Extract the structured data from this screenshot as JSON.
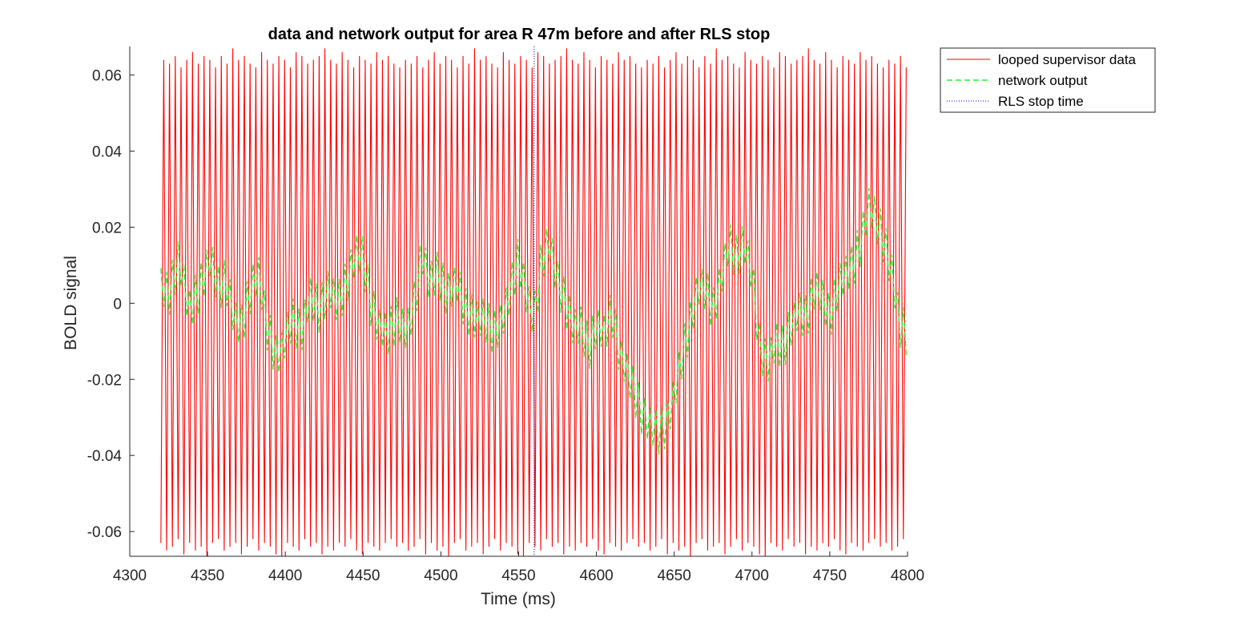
{
  "chart_data": {
    "type": "line",
    "title": "data and network output for area R 47m before and after RLS stop",
    "xlabel": "Time (ms)",
    "ylabel": "BOLD signal",
    "xlim": [
      4300,
      4800
    ],
    "ylim": [
      -0.0665,
      0.0675
    ],
    "xticks": [
      4300,
      4350,
      4400,
      4450,
      4500,
      4550,
      4600,
      4650,
      4700,
      4750,
      4800
    ],
    "xtick_labels": [
      "4300",
      "4350",
      "4400",
      "4450",
      "4500",
      "4550",
      "4600",
      "4650",
      "4700",
      "4750",
      "4800"
    ],
    "yticks": [
      -0.06,
      -0.04,
      -0.02,
      0,
      0.02,
      0.04,
      0.06
    ],
    "ytick_labels": [
      "-0.06",
      "-0.04",
      "-0.02",
      "0",
      "0.02",
      "0.04",
      "0.06"
    ],
    "grid": false,
    "legend_position": "outside top-right",
    "series": [
      {
        "name": "looped supervisor data",
        "color": "#ff0000",
        "style": "solid",
        "x_start": 4320,
        "x_end": 4800,
        "period_ms": 3.7,
        "peaks": [
          0.064,
          0.063,
          0.065,
          0.062,
          0.064,
          0.066,
          0.063,
          0.065,
          0.064,
          0.062,
          0.065,
          0.063,
          0.067,
          0.064,
          0.065,
          0.063,
          0.062,
          0.066,
          0.064,
          0.063,
          0.065,
          0.064,
          0.062,
          0.066,
          0.065,
          0.063,
          0.064,
          0.065,
          0.067,
          0.064,
          0.063,
          0.066,
          0.064,
          0.062,
          0.065,
          0.064,
          0.063,
          0.066,
          0.064,
          0.065,
          0.063,
          0.062
        ],
        "troughs": [
          -0.063,
          -0.065,
          -0.064,
          -0.062,
          -0.066,
          -0.063,
          -0.065,
          -0.064,
          -0.067,
          -0.063,
          -0.062,
          -0.065,
          -0.064,
          -0.063,
          -0.066,
          -0.064,
          -0.062,
          -0.065,
          -0.063,
          -0.064,
          -0.066,
          -0.067,
          -0.063,
          -0.064,
          -0.065,
          -0.062,
          -0.064,
          -0.063,
          -0.066,
          -0.064,
          -0.065,
          -0.063,
          -0.064,
          -0.062,
          -0.065,
          -0.066,
          -0.063,
          -0.064,
          -0.065,
          -0.063,
          -0.062,
          -0.064
        ]
      },
      {
        "name": "network output",
        "color": "#33ee33",
        "style": "dashed",
        "x_start": 4320,
        "x_end": 4800,
        "oscillation_amplitude": 0.006,
        "period_ms": 3.7,
        "envelope": [
          {
            "x": 4320,
            "y": 0.005
          },
          {
            "x": 4325,
            "y": 0.002
          },
          {
            "x": 4332,
            "y": 0.012
          },
          {
            "x": 4338,
            "y": -0.002
          },
          {
            "x": 4345,
            "y": 0.004
          },
          {
            "x": 4352,
            "y": 0.012
          },
          {
            "x": 4357,
            "y": 0.004
          },
          {
            "x": 4362,
            "y": 0.006
          },
          {
            "x": 4367,
            "y": -0.004
          },
          {
            "x": 4372,
            "y": -0.006
          },
          {
            "x": 4378,
            "y": 0.004
          },
          {
            "x": 4383,
            "y": 0.008
          },
          {
            "x": 4388,
            "y": -0.006
          },
          {
            "x": 4394,
            "y": -0.014
          },
          {
            "x": 4398,
            "y": -0.012
          },
          {
            "x": 4404,
            "y": -0.004
          },
          {
            "x": 4410,
            "y": -0.008
          },
          {
            "x": 4416,
            "y": 0.002
          },
          {
            "x": 4422,
            "y": -0.002
          },
          {
            "x": 4428,
            "y": 0.004
          },
          {
            "x": 4434,
            "y": 0.0
          },
          {
            "x": 4440,
            "y": 0.006
          },
          {
            "x": 4446,
            "y": 0.014
          },
          {
            "x": 4450,
            "y": 0.012
          },
          {
            "x": 4455,
            "y": 0.0
          },
          {
            "x": 4460,
            "y": -0.006
          },
          {
            "x": 4466,
            "y": -0.008
          },
          {
            "x": 4472,
            "y": -0.004
          },
          {
            "x": 4478,
            "y": -0.008
          },
          {
            "x": 4484,
            "y": 0.002
          },
          {
            "x": 4488,
            "y": 0.014
          },
          {
            "x": 4492,
            "y": 0.006
          },
          {
            "x": 4498,
            "y": 0.008
          },
          {
            "x": 4504,
            "y": 0.002
          },
          {
            "x": 4510,
            "y": 0.006
          },
          {
            "x": 4516,
            "y": -0.002
          },
          {
            "x": 4522,
            "y": -0.004
          },
          {
            "x": 4528,
            "y": -0.004
          },
          {
            "x": 4534,
            "y": -0.008
          },
          {
            "x": 4540,
            "y": -0.004
          },
          {
            "x": 4545,
            "y": 0.004
          },
          {
            "x": 4550,
            "y": 0.012
          },
          {
            "x": 4555,
            "y": 0.002
          },
          {
            "x": 4560,
            "y": -0.004
          },
          {
            "x": 4565,
            "y": 0.012
          },
          {
            "x": 4570,
            "y": 0.016
          },
          {
            "x": 4575,
            "y": 0.006
          },
          {
            "x": 4580,
            "y": 0.0
          },
          {
            "x": 4585,
            "y": -0.006
          },
          {
            "x": 4590,
            "y": -0.006
          },
          {
            "x": 4595,
            "y": -0.012
          },
          {
            "x": 4600,
            "y": -0.006
          },
          {
            "x": 4605,
            "y": -0.008
          },
          {
            "x": 4610,
            "y": -0.002
          },
          {
            "x": 4615,
            "y": -0.014
          },
          {
            "x": 4620,
            "y": -0.018
          },
          {
            "x": 4625,
            "y": -0.024
          },
          {
            "x": 4630,
            "y": -0.03
          },
          {
            "x": 4635,
            "y": -0.032
          },
          {
            "x": 4640,
            "y": -0.034
          },
          {
            "x": 4645,
            "y": -0.032
          },
          {
            "x": 4650,
            "y": -0.024
          },
          {
            "x": 4655,
            "y": -0.014
          },
          {
            "x": 4660,
            "y": -0.006
          },
          {
            "x": 4665,
            "y": 0.004
          },
          {
            "x": 4670,
            "y": 0.004
          },
          {
            "x": 4675,
            "y": -0.002
          },
          {
            "x": 4680,
            "y": 0.006
          },
          {
            "x": 4685,
            "y": 0.016
          },
          {
            "x": 4690,
            "y": 0.012
          },
          {
            "x": 4695,
            "y": 0.016
          },
          {
            "x": 4700,
            "y": 0.008
          },
          {
            "x": 4705,
            "y": -0.012
          },
          {
            "x": 4710,
            "y": -0.016
          },
          {
            "x": 4715,
            "y": -0.01
          },
          {
            "x": 4720,
            "y": -0.012
          },
          {
            "x": 4725,
            "y": -0.006
          },
          {
            "x": 4730,
            "y": -0.002
          },
          {
            "x": 4735,
            "y": -0.004
          },
          {
            "x": 4740,
            "y": 0.004
          },
          {
            "x": 4745,
            "y": 0.002
          },
          {
            "x": 4750,
            "y": -0.004
          },
          {
            "x": 4755,
            "y": 0.004
          },
          {
            "x": 4760,
            "y": 0.008
          },
          {
            "x": 4765,
            "y": 0.01
          },
          {
            "x": 4770,
            "y": 0.016
          },
          {
            "x": 4775,
            "y": 0.026
          },
          {
            "x": 4780,
            "y": 0.022
          },
          {
            "x": 4785,
            "y": 0.016
          },
          {
            "x": 4790,
            "y": 0.008
          },
          {
            "x": 4795,
            "y": -0.006
          },
          {
            "x": 4800,
            "y": -0.008
          }
        ]
      },
      {
        "name": "RLS stop time",
        "color": "#0000cc",
        "style": "dotted",
        "x": 4560,
        "y_range": [
          -0.0665,
          0.0675
        ]
      }
    ]
  }
}
